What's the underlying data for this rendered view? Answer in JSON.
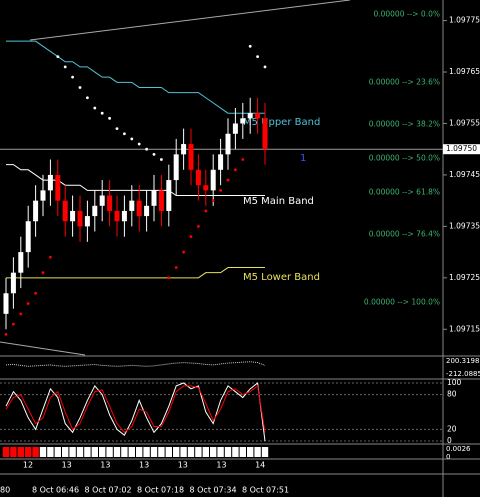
{
  "chart_data": {
    "type": "candlestick",
    "open": [
      1.09718,
      1.09722,
      1.09726,
      1.0973,
      1.09736,
      1.0974,
      1.09742,
      1.09745,
      1.0974,
      1.09736,
      1.09738,
      1.09735,
      1.09737,
      1.09739,
      1.09741,
      1.09738,
      1.09736,
      1.09738,
      1.0974,
      1.09737,
      1.09739,
      1.09742,
      1.09738,
      1.09744,
      1.09749,
      1.09751,
      1.09746,
      1.09743,
      1.09742,
      1.09746,
      1.09749,
      1.09753,
      1.09755,
      1.09756,
      1.09757,
      1.09756
    ],
    "high": [
      1.09725,
      1.09729,
      1.09733,
      1.09739,
      1.09743,
      1.09745,
      1.09748,
      1.09748,
      1.09743,
      1.09741,
      1.09741,
      1.0974,
      1.09742,
      1.09744,
      1.09744,
      1.09741,
      1.09741,
      1.09743,
      1.09743,
      1.09742,
      1.09745,
      1.09745,
      1.09747,
      1.09752,
      1.09754,
      1.09754,
      1.09749,
      1.09746,
      1.09749,
      1.09752,
      1.09756,
      1.09758,
      1.09759,
      1.0976,
      1.0976,
      1.09759
    ],
    "low": [
      1.09715,
      1.09719,
      1.09723,
      1.09727,
      1.09733,
      1.09737,
      1.09739,
      1.09737,
      1.09733,
      1.09733,
      1.09732,
      1.09732,
      1.09734,
      1.09736,
      1.09735,
      1.09733,
      1.09733,
      1.09735,
      1.09734,
      1.09734,
      1.09736,
      1.09735,
      1.09735,
      1.09741,
      1.09746,
      1.09743,
      1.0974,
      1.09739,
      1.09739,
      1.09743,
      1.09746,
      1.0975,
      1.09752,
      1.09753,
      1.09753,
      1.09747
    ],
    "close": [
      1.09722,
      1.09726,
      1.0973,
      1.09736,
      1.0974,
      1.09742,
      1.09745,
      1.0974,
      1.09736,
      1.09738,
      1.09735,
      1.09737,
      1.09739,
      1.09741,
      1.09738,
      1.09736,
      1.09738,
      1.0974,
      1.09737,
      1.09739,
      1.09742,
      1.09738,
      1.09744,
      1.09749,
      1.09751,
      1.09746,
      1.09743,
      1.09742,
      1.09746,
      1.09749,
      1.09753,
      1.09755,
      1.09756,
      1.09757,
      1.09756,
      1.0975
    ],
    "up_color": "#ffffff",
    "down_color": "#ff0000",
    "bands": [
      {
        "name": "M5 Upper Band",
        "color": "#4fc3d9",
        "values": [
          1.09771,
          1.09771,
          1.09771,
          1.09771,
          1.09771,
          1.0977,
          1.09769,
          1.09768,
          1.09767,
          1.09767,
          1.09766,
          1.09766,
          1.09765,
          1.09764,
          1.09764,
          1.09763,
          1.09763,
          1.09763,
          1.09762,
          1.09762,
          1.09762,
          1.09762,
          1.09761,
          1.09761,
          1.09761,
          1.09761,
          1.09761,
          1.0976,
          1.09759,
          1.09758,
          1.09757,
          1.09757,
          1.09757,
          1.09757,
          1.09757,
          1.09757
        ]
      },
      {
        "name": "M5 Main Band",
        "color": "#ffffff",
        "values": [
          1.09747,
          1.09747,
          1.09746,
          1.09746,
          1.09745,
          1.09744,
          1.09744,
          1.09744,
          1.09743,
          1.09743,
          1.09743,
          1.09742,
          1.09742,
          1.09742,
          1.09742,
          1.09742,
          1.09742,
          1.09742,
          1.09742,
          1.09742,
          1.09742,
          1.09742,
          1.09742,
          1.09741,
          1.09741,
          1.09741,
          1.09741,
          1.09741,
          1.09741,
          1.09741,
          1.09741,
          1.09741,
          1.09741,
          1.09741,
          1.09741,
          1.09741
        ]
      },
      {
        "name": "M5 Lower Band",
        "color": "#e8e05a",
        "values": [
          1.09725,
          1.09725,
          1.09725,
          1.09725,
          1.09725,
          1.09725,
          1.09725,
          1.09725,
          1.09725,
          1.09725,
          1.09725,
          1.09725,
          1.09725,
          1.09725,
          1.09725,
          1.09725,
          1.09725,
          1.09725,
          1.09725,
          1.09725,
          1.09725,
          1.09725,
          1.09725,
          1.09725,
          1.09725,
          1.09725,
          1.09725,
          1.09726,
          1.09726,
          1.09726,
          1.09727,
          1.09727,
          1.09727,
          1.09727,
          1.09727,
          1.09727
        ]
      }
    ],
    "sar": [
      1.09714,
      1.09716,
      1.09718,
      1.0972,
      1.09722,
      1.09726,
      1.09729,
      1.09768,
      1.09766,
      1.09764,
      1.09762,
      1.0976,
      1.09758,
      1.09757,
      1.09756,
      1.09754,
      1.09753,
      1.09752,
      1.09751,
      1.0975,
      1.09749,
      1.09748,
      1.09725,
      1.09727,
      1.0973,
      1.09733,
      1.09735,
      1.09738,
      1.0974,
      1.09742,
      1.09744,
      1.09746,
      1.09748,
      1.0977,
      1.09768,
      1.09766
    ],
    "fib_color": "#3cb371",
    "fib": [
      {
        "value": 1.09776,
        "label": "0.00000 --> 0.0%"
      },
      {
        "value": 1.097628,
        "label": "0.00000 --> 23.6%"
      },
      {
        "value": 1.097546,
        "label": "0.00000 --> 38.2%"
      },
      {
        "value": 1.09748,
        "label": "0.00000 --> 50.0%"
      },
      {
        "value": 1.097414,
        "label": "0.00000 --> 61.8%"
      },
      {
        "value": 1.097332,
        "label": "0.00000 --> 76.4%"
      },
      {
        "value": 1.0972,
        "label": "0.00000 --> 100.0%"
      }
    ],
    "ylim": [
      1.0971,
      1.09779
    ],
    "yticks": [
      1.09715,
      1.09725,
      1.09735,
      1.09745,
      1.09755,
      1.09765,
      1.09775
    ],
    "current_price": {
      "value": 1.0975,
      "label": "1.09750"
    },
    "marker": "1",
    "cci": {
      "values": [
        50,
        60,
        40,
        20,
        30,
        40,
        50,
        30,
        20,
        30,
        40,
        50,
        60,
        40,
        30,
        20,
        30,
        40,
        30,
        20,
        30,
        50,
        70,
        90,
        100,
        90,
        80,
        60,
        50,
        70,
        90,
        100,
        110,
        120,
        100,
        40
      ],
      "ylim": [
        -212.0885,
        200.3198
      ],
      "yticks": [
        -212.0885,
        200.3198
      ]
    },
    "stochastic": {
      "series": [
        {
          "color": "#ffffff",
          "values": [
            60,
            85,
            70,
            40,
            20,
            55,
            90,
            75,
            30,
            15,
            40,
            70,
            95,
            80,
            45,
            20,
            10,
            35,
            70,
            40,
            15,
            30,
            60,
            95,
            100,
            90,
            95,
            50,
            30,
            70,
            95,
            85,
            75,
            90,
            100,
            0
          ]
        },
        {
          "color": "#ff0000",
          "values": [
            55,
            75,
            80,
            55,
            30,
            40,
            75,
            85,
            50,
            20,
            30,
            60,
            85,
            88,
            60,
            30,
            15,
            25,
            55,
            50,
            25,
            25,
            50,
            85,
            95,
            95,
            92,
            65,
            35,
            55,
            85,
            90,
            80,
            85,
            95,
            15
          ]
        }
      ],
      "ylim": [
        0,
        100
      ],
      "yticks": [
        0,
        20,
        80,
        100
      ]
    },
    "signal": {
      "values": [
        1,
        1,
        1,
        1,
        1,
        0,
        0,
        0,
        0,
        0,
        0,
        0,
        0,
        0,
        0,
        0,
        0,
        0,
        0,
        0,
        0,
        0,
        0,
        0,
        0,
        0,
        0,
        0,
        0,
        0,
        0,
        0,
        0,
        0,
        0,
        0
      ],
      "colors": [
        "#ffffff",
        "#ff0000"
      ],
      "labels": [
        "0.0026",
        "0"
      ]
    },
    "hour_labels": [
      "12",
      "13",
      "13",
      "13",
      "13",
      "13",
      "14"
    ],
    "time_labels": [
      "80",
      "8 Oct 06:46",
      "8 Oct 07:02",
      "8 Oct 07:18",
      "8 Oct 07:34",
      "8 Oct 07:51"
    ]
  }
}
